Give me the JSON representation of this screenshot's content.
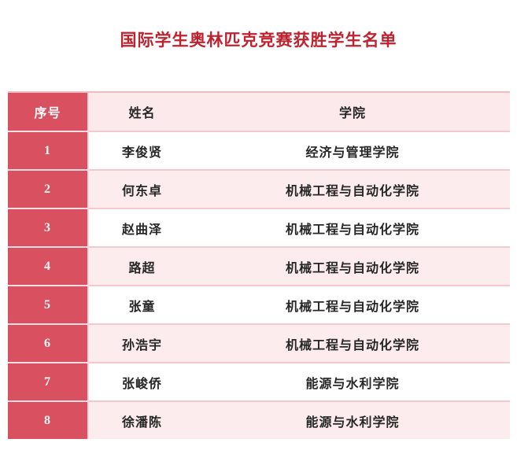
{
  "title": "国际学生奥林匹克竞赛获胜学生名单",
  "table": {
    "columns": [
      {
        "key": "index",
        "label": "序号"
      },
      {
        "key": "name",
        "label": "姓名"
      },
      {
        "key": "college",
        "label": "学院"
      }
    ],
    "rows": [
      {
        "index": "1",
        "name": "李俊贤",
        "college": "经济与管理学院"
      },
      {
        "index": "2",
        "name": "何东卓",
        "college": "机械工程与自动化学院"
      },
      {
        "index": "3",
        "name": "赵曲泽",
        "college": "机械工程与自动化学院"
      },
      {
        "index": "4",
        "name": "路超",
        "college": "机械工程与自动化学院"
      },
      {
        "index": "5",
        "name": "张童",
        "college": "机械工程与自动化学院"
      },
      {
        "index": "6",
        "name": "孙浩宇",
        "college": "机械工程与自动化学院"
      },
      {
        "index": "7",
        "name": "张峻侨",
        "college": "能源与水利学院"
      },
      {
        "index": "8",
        "name": "徐潘陈",
        "college": "能源与水利学院"
      }
    ]
  },
  "colors": {
    "theme_red": "#d95161",
    "title_red": "#bf222f",
    "row_pink": "#fcecee",
    "header_pink": "#fbe9ec",
    "text_dark": "#262626",
    "separator_pink": "#f3c8cf"
  }
}
